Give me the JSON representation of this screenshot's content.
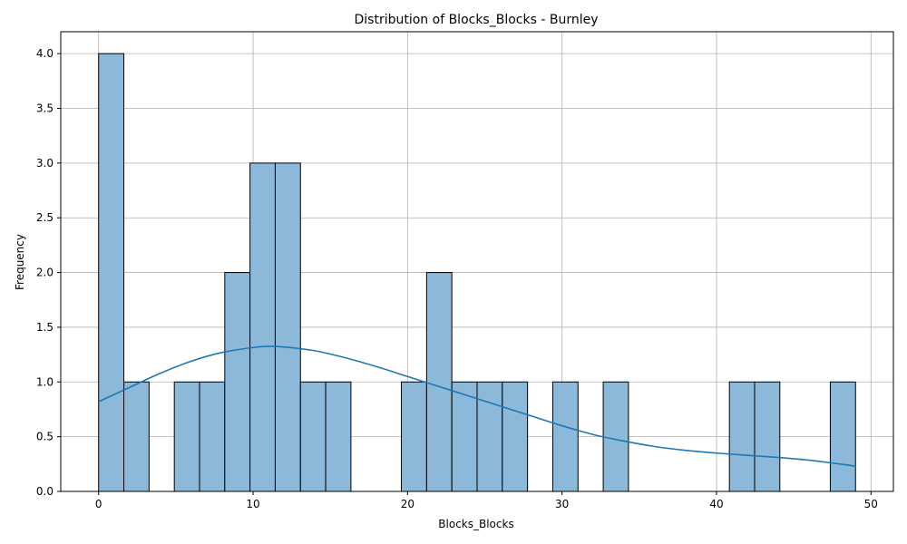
{
  "chart_data": {
    "type": "bar",
    "title": "Distribution of Blocks_Blocks - Burnley",
    "xlabel": "Blocks_Blocks",
    "ylabel": "Frequency",
    "xlim": [
      -2.45,
      51.45
    ],
    "ylim": [
      0,
      4.2
    ],
    "xticks": [
      0,
      10,
      20,
      30,
      40,
      50
    ],
    "yticks": [
      0.0,
      0.5,
      1.0,
      1.5,
      2.0,
      2.5,
      3.0,
      3.5,
      4.0
    ],
    "xtick_labels": [
      "0",
      "10",
      "20",
      "30",
      "40",
      "50"
    ],
    "ytick_labels": [
      "0.0",
      "0.5",
      "1.0",
      "1.5",
      "2.0",
      "2.5",
      "3.0",
      "3.5",
      "4.0"
    ],
    "grid": true,
    "bin_start": 0,
    "bin_width": 1.6333,
    "values": [
      4,
      1,
      0,
      1,
      1,
      2,
      3,
      3,
      1,
      1,
      0,
      0,
      1,
      2,
      1,
      1,
      1,
      0,
      1,
      0,
      1,
      0,
      0,
      0,
      0,
      1,
      1,
      0,
      0,
      1
    ],
    "bar_color": "#8cb8d9",
    "bar_edge_color": "#000000",
    "kde": {
      "color": "#1f77b4",
      "x": [
        0,
        2,
        4,
        6,
        8,
        10,
        11,
        12,
        14,
        16,
        18,
        20,
        22,
        24,
        26,
        28,
        30,
        32,
        34,
        36,
        38,
        40,
        42,
        44,
        46,
        48,
        49
      ],
      "y": [
        0.82,
        0.95,
        1.08,
        1.19,
        1.27,
        1.315,
        1.325,
        1.32,
        1.285,
        1.22,
        1.14,
        1.05,
        0.96,
        0.87,
        0.78,
        0.69,
        0.6,
        0.52,
        0.46,
        0.41,
        0.375,
        0.35,
        0.33,
        0.31,
        0.285,
        0.25,
        0.23
      ]
    }
  }
}
